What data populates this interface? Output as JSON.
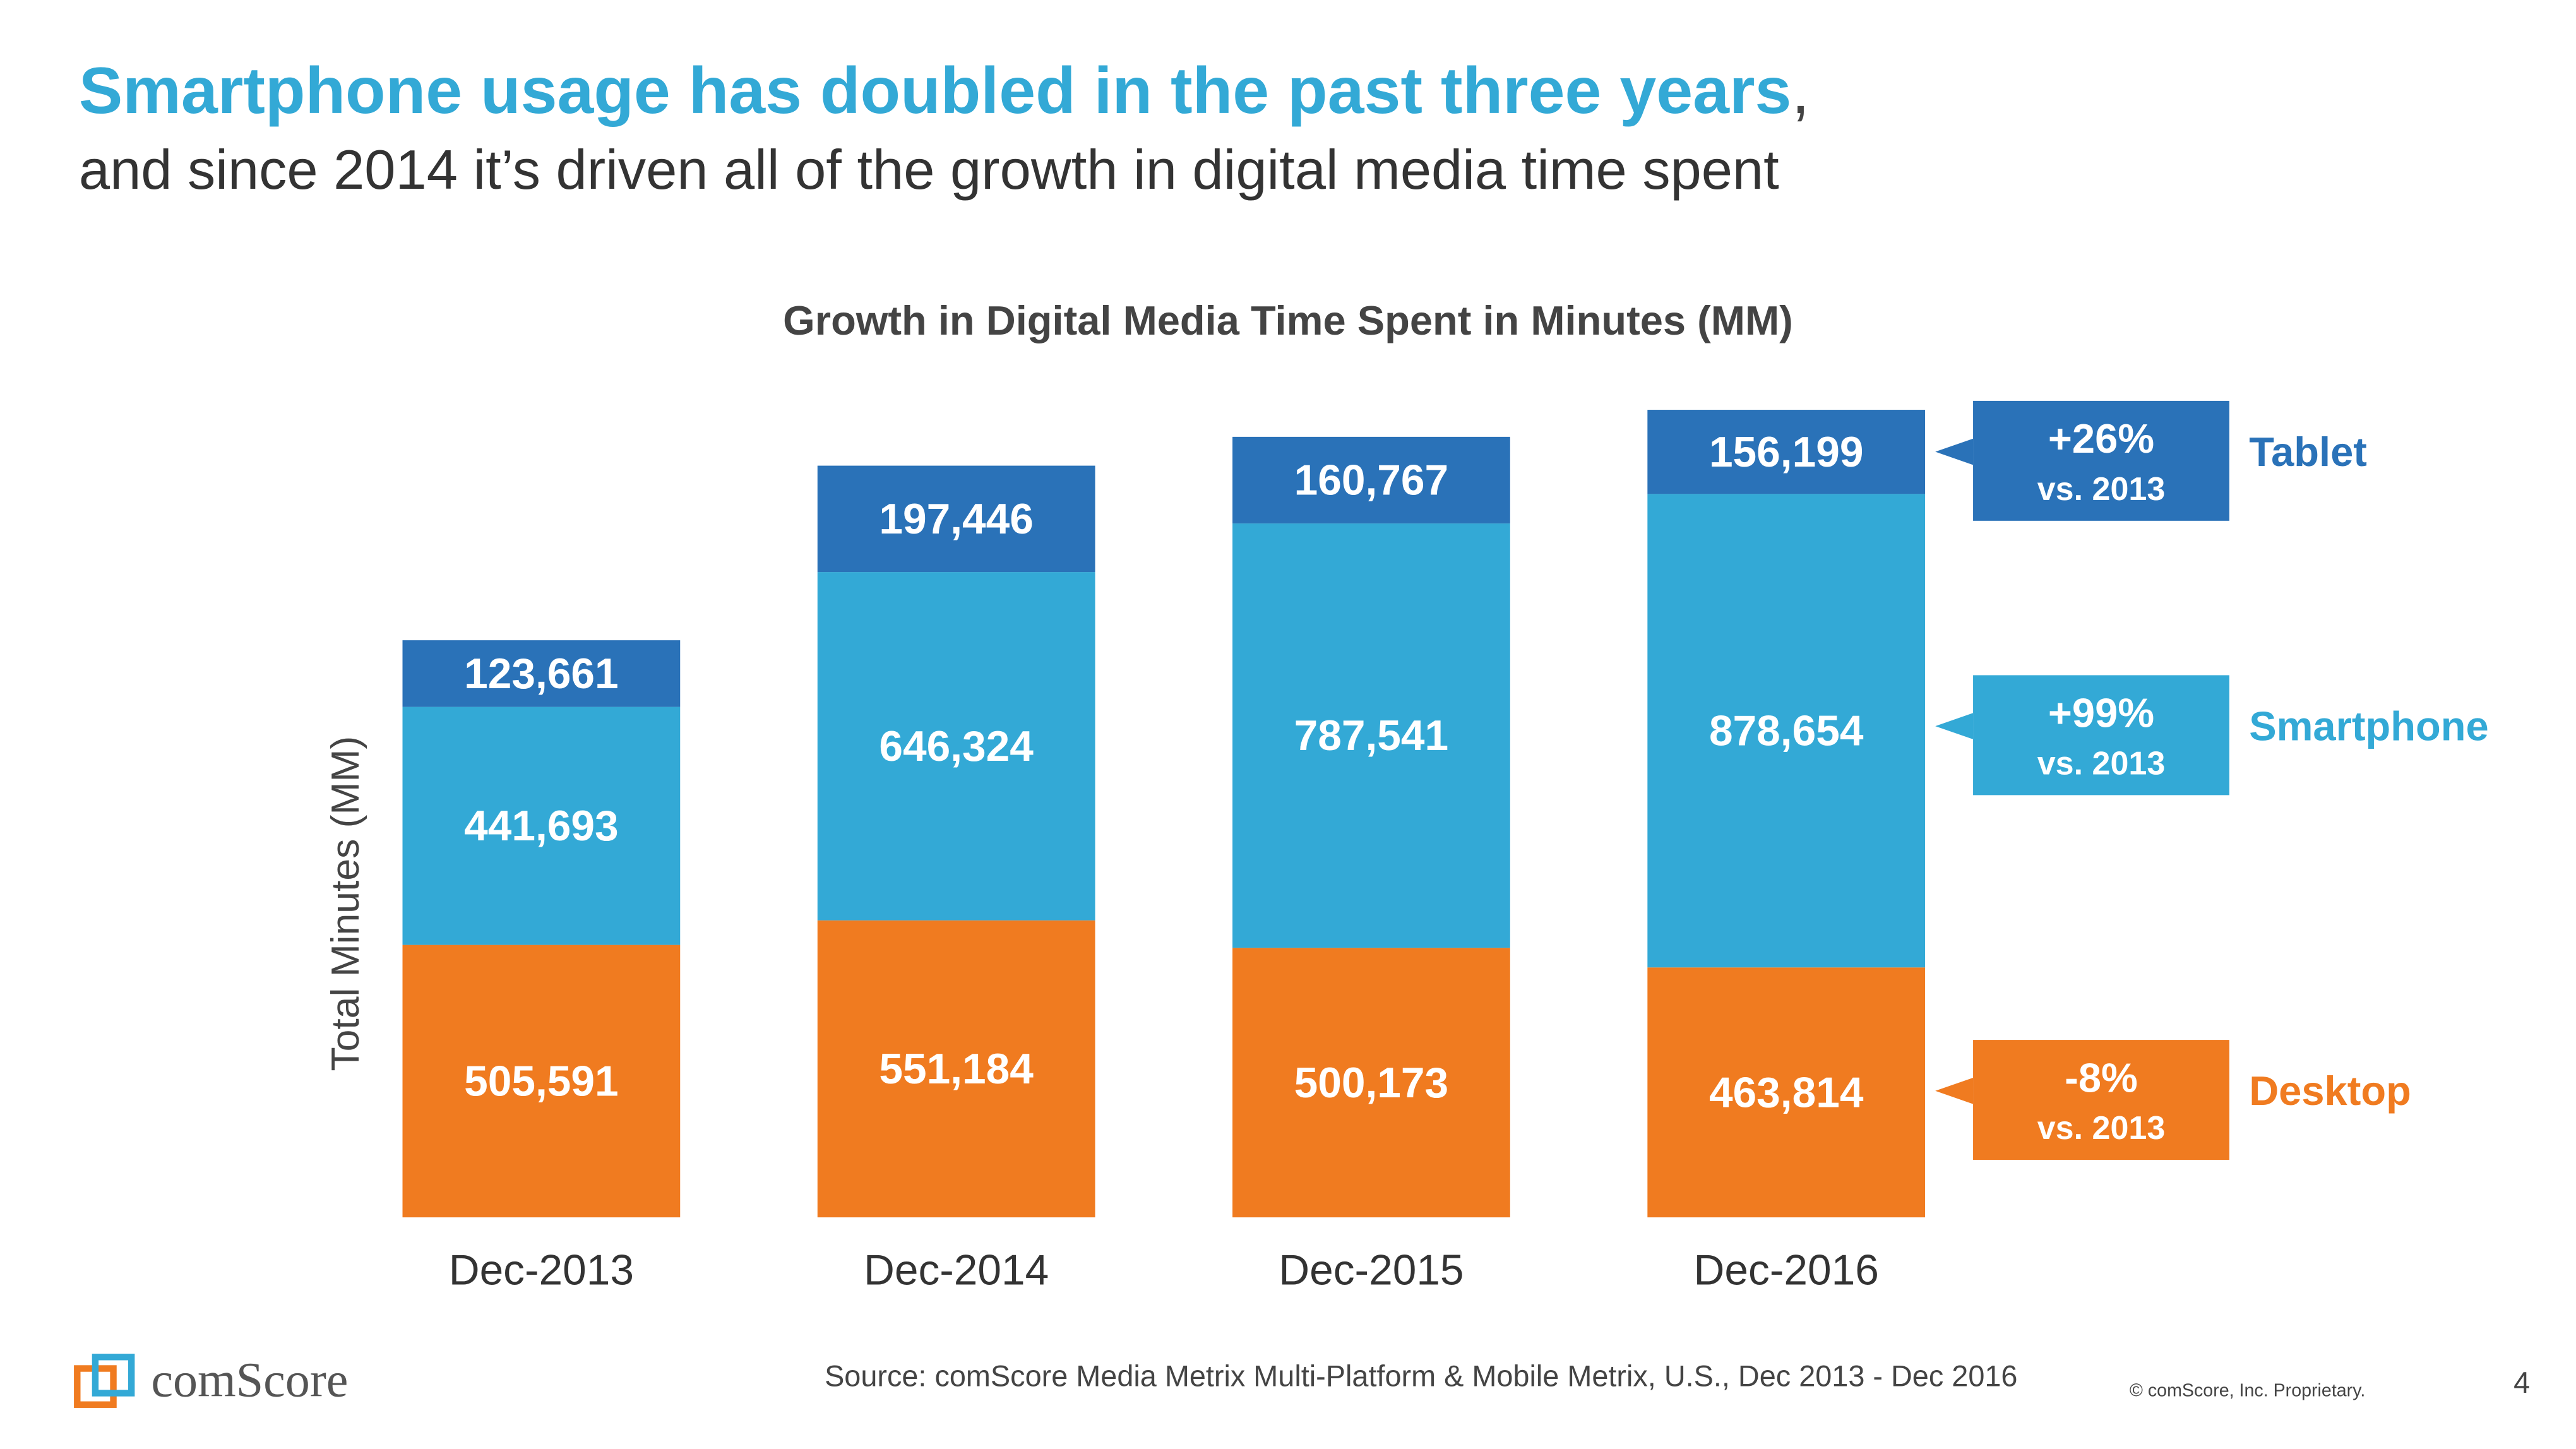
{
  "header": {
    "title": "Smartphone usage has doubled in the past three years",
    "title_punct": ",",
    "subtitle": "and since 2014 it’s driven all of the growth in digital media time spent"
  },
  "chart_data": {
    "type": "stacked_bar",
    "title": "Growth in Digital Media Time Spent in Minutes (MM)",
    "ylabel": "Total Minutes (MM)",
    "categories": [
      "Dec-2013",
      "Dec-2014",
      "Dec-2015",
      "Dec-2016"
    ],
    "ylim": [
      0,
      1500000
    ],
    "series": [
      {
        "name": "Desktop",
        "color": "#f07b20",
        "values": [
          505591,
          551184,
          500173,
          463814
        ],
        "value_labels": [
          "505,591",
          "551,184",
          "500,173",
          "463,814"
        ]
      },
      {
        "name": "Smartphone",
        "color": "#33a9d6",
        "values": [
          441693,
          646324,
          787541,
          878654
        ],
        "value_labels": [
          "441,693",
          "646,324",
          "787,541",
          "878,654"
        ]
      },
      {
        "name": "Tablet",
        "color": "#2a72b8",
        "values": [
          123661,
          197446,
          160767,
          156199
        ],
        "value_labels": [
          "123,661",
          "197,446",
          "160,767",
          "156,199"
        ]
      }
    ],
    "annotations": [
      {
        "series": "Desktop",
        "change": "-8%",
        "note": "vs. 2013"
      },
      {
        "series": "Smartphone",
        "change": "+99%",
        "note": "vs. 2013"
      },
      {
        "series": "Tablet",
        "change": "+26%",
        "note": "vs. 2013"
      }
    ]
  },
  "footer": {
    "logo": "comScore",
    "source": "Source: comScore Media Metrix Multi-Platform & Mobile Metrix, U.S., Dec 2013 - Dec 2016",
    "copyright": "© comScore, Inc. Proprietary.",
    "page": "4"
  }
}
